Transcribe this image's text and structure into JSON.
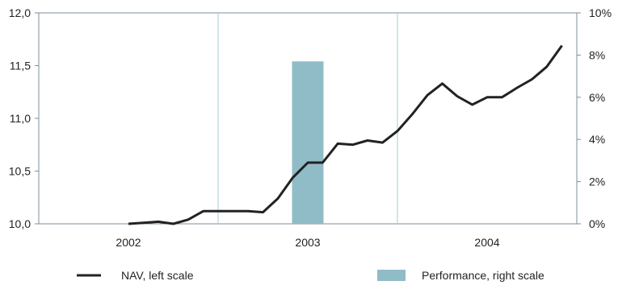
{
  "chart_data": {
    "type": "bar+line",
    "title": "",
    "x_categories": [
      "2002",
      "2003",
      "2004"
    ],
    "left_axis": {
      "ticks": [
        "10,0",
        "10,5",
        "11,0",
        "11,5",
        "12,0"
      ],
      "ylim": [
        10.0,
        12.0
      ]
    },
    "right_axis": {
      "ticks": [
        "0%",
        "2%",
        "4%",
        "6%",
        "8%",
        "10%"
      ],
      "ylim": [
        0,
        10
      ]
    },
    "grid": "vertical",
    "legend_position": "bottom",
    "series": [
      {
        "name": "NAV, left scale",
        "kind": "line",
        "axis": "left",
        "color": "#222222",
        "x": [
          2002.0,
          2002.083,
          2002.167,
          2002.25,
          2002.333,
          2002.417,
          2002.5,
          2002.583,
          2002.667,
          2002.75,
          2002.833,
          2002.917,
          2003.0,
          2003.083,
          2003.167,
          2003.25,
          2003.333,
          2003.417,
          2003.5,
          2003.583,
          2003.667,
          2003.75,
          2003.833,
          2003.917,
          2004.0,
          2004.083,
          2004.167,
          2004.25,
          2004.333,
          2004.417
        ],
        "y": [
          10.0,
          10.01,
          10.02,
          10.0,
          10.04,
          10.12,
          10.12,
          10.12,
          10.12,
          10.11,
          10.24,
          10.44,
          10.58,
          10.58,
          10.76,
          10.75,
          10.79,
          10.77,
          10.88,
          11.04,
          11.22,
          11.33,
          11.21,
          11.13,
          11.2,
          11.2,
          11.29,
          11.37,
          11.49,
          11.69
        ]
      },
      {
        "name": "Performance, right scale",
        "kind": "bar",
        "axis": "right",
        "color": "#8fbcc7",
        "categories": [
          "2003"
        ],
        "values": [
          7.7
        ]
      }
    ]
  }
}
